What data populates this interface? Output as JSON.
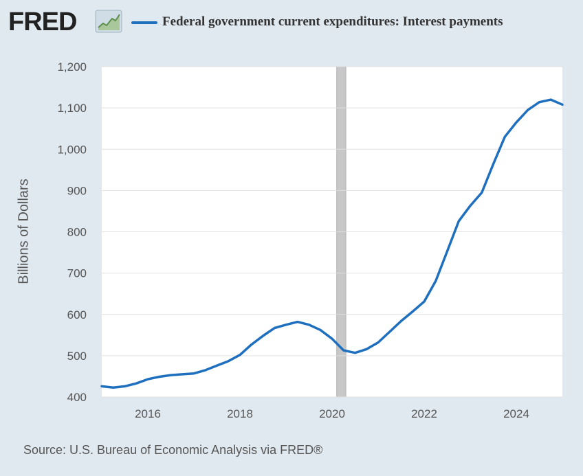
{
  "header": {
    "logo_text": "FRED",
    "legend_label": "Federal government current expenditures: Interest payments"
  },
  "footer": {
    "source": "Source: U.S. Bureau of Economic Analysis via FRED®"
  },
  "colors": {
    "series": "#1f6fbf",
    "background": "#e1e9f0",
    "recession": "#c8c8c8"
  },
  "chart_data": {
    "type": "line",
    "title": "",
    "xlabel": "",
    "ylabel": "Billions of Dollars",
    "xlim": [
      2015.0,
      2025.0
    ],
    "ylim": [
      400,
      1200
    ],
    "yticks": [
      400,
      500,
      600,
      700,
      800,
      900,
      1000,
      1100,
      1200
    ],
    "ytick_labels": [
      "400",
      "500",
      "600",
      "700",
      "800",
      "900",
      "1,000",
      "1,100",
      "1,200"
    ],
    "xticks": [
      2016,
      2018,
      2020,
      2022,
      2024
    ],
    "xtick_labels": [
      "2016",
      "2018",
      "2020",
      "2022",
      "2024"
    ],
    "grid": true,
    "recession_shading": [
      2020.1,
      2020.3
    ],
    "series": [
      {
        "name": "Federal government current expenditures: Interest payments",
        "x": [
          2015.0,
          2015.25,
          2015.5,
          2015.75,
          2016.0,
          2016.25,
          2016.5,
          2016.75,
          2017.0,
          2017.25,
          2017.5,
          2017.75,
          2018.0,
          2018.25,
          2018.5,
          2018.75,
          2019.0,
          2019.25,
          2019.5,
          2019.75,
          2020.0,
          2020.25,
          2020.5,
          2020.75,
          2021.0,
          2021.25,
          2021.5,
          2021.75,
          2022.0,
          2022.25,
          2022.5,
          2022.75,
          2023.0,
          2023.25,
          2023.5,
          2023.75,
          2024.0,
          2024.25,
          2024.5,
          2024.75,
          2025.0
        ],
        "values": [
          426,
          423,
          426,
          433,
          443,
          449,
          453,
          455,
          457,
          465,
          476,
          487,
          502,
          527,
          548,
          567,
          575,
          582,
          575,
          562,
          541,
          513,
          507,
          516,
          532,
          558,
          584,
          607,
          631,
          681,
          753,
          826,
          863,
          895,
          964,
          1030,
          1065,
          1095,
          1114,
          1120,
          1108
        ]
      }
    ]
  }
}
